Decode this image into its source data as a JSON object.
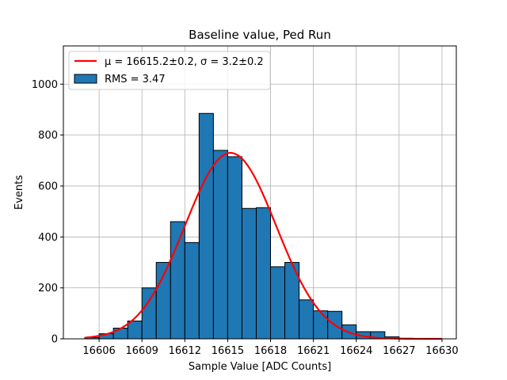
{
  "chart_data": {
    "type": "bar",
    "title": "Baseline value, Ped Run",
    "xlabel": "Sample Value [ADC Counts]",
    "ylabel": "Events",
    "xlim": [
      16603.5,
      16631.0
    ],
    "ylim": [
      0,
      1150
    ],
    "xticks": [
      16606,
      16609,
      16612,
      16615,
      16618,
      16621,
      16624,
      16627,
      16630
    ],
    "yticks": [
      0,
      200,
      400,
      600,
      800,
      1000
    ],
    "grid": true,
    "legend_position": "top-left",
    "bin_width": 1,
    "bins": [
      {
        "x": 16605,
        "count": 5
      },
      {
        "x": 16606,
        "count": 20
      },
      {
        "x": 16607,
        "count": 42
      },
      {
        "x": 16608,
        "count": 70
      },
      {
        "x": 16609,
        "count": 200
      },
      {
        "x": 16610,
        "count": 300
      },
      {
        "x": 16611,
        "count": 460
      },
      {
        "x": 16612,
        "count": 378
      },
      {
        "x": 16613,
        "count": 885
      },
      {
        "x": 16614,
        "count": 740
      },
      {
        "x": 16615,
        "count": 715
      },
      {
        "x": 16616,
        "count": 512
      },
      {
        "x": 16617,
        "count": 515
      },
      {
        "x": 16618,
        "count": 283
      },
      {
        "x": 16619,
        "count": 300
      },
      {
        "x": 16620,
        "count": 153
      },
      {
        "x": 16621,
        "count": 110
      },
      {
        "x": 16622,
        "count": 108
      },
      {
        "x": 16623,
        "count": 55
      },
      {
        "x": 16624,
        "count": 28
      },
      {
        "x": 16625,
        "count": 28
      },
      {
        "x": 16626,
        "count": 8
      },
      {
        "x": 16627,
        "count": 2
      }
    ],
    "fit": {
      "mu": 16615.2,
      "sigma": 3.2,
      "amplitude": 730,
      "x_range": [
        16605,
        16630
      ],
      "color": "#ff0000",
      "label": "μ = 16615.2±0.2, σ = 3.2±0.2"
    },
    "hist": {
      "label": "RMS = 3.47",
      "color": "#1f77b4",
      "edge_color": "#000000"
    }
  }
}
